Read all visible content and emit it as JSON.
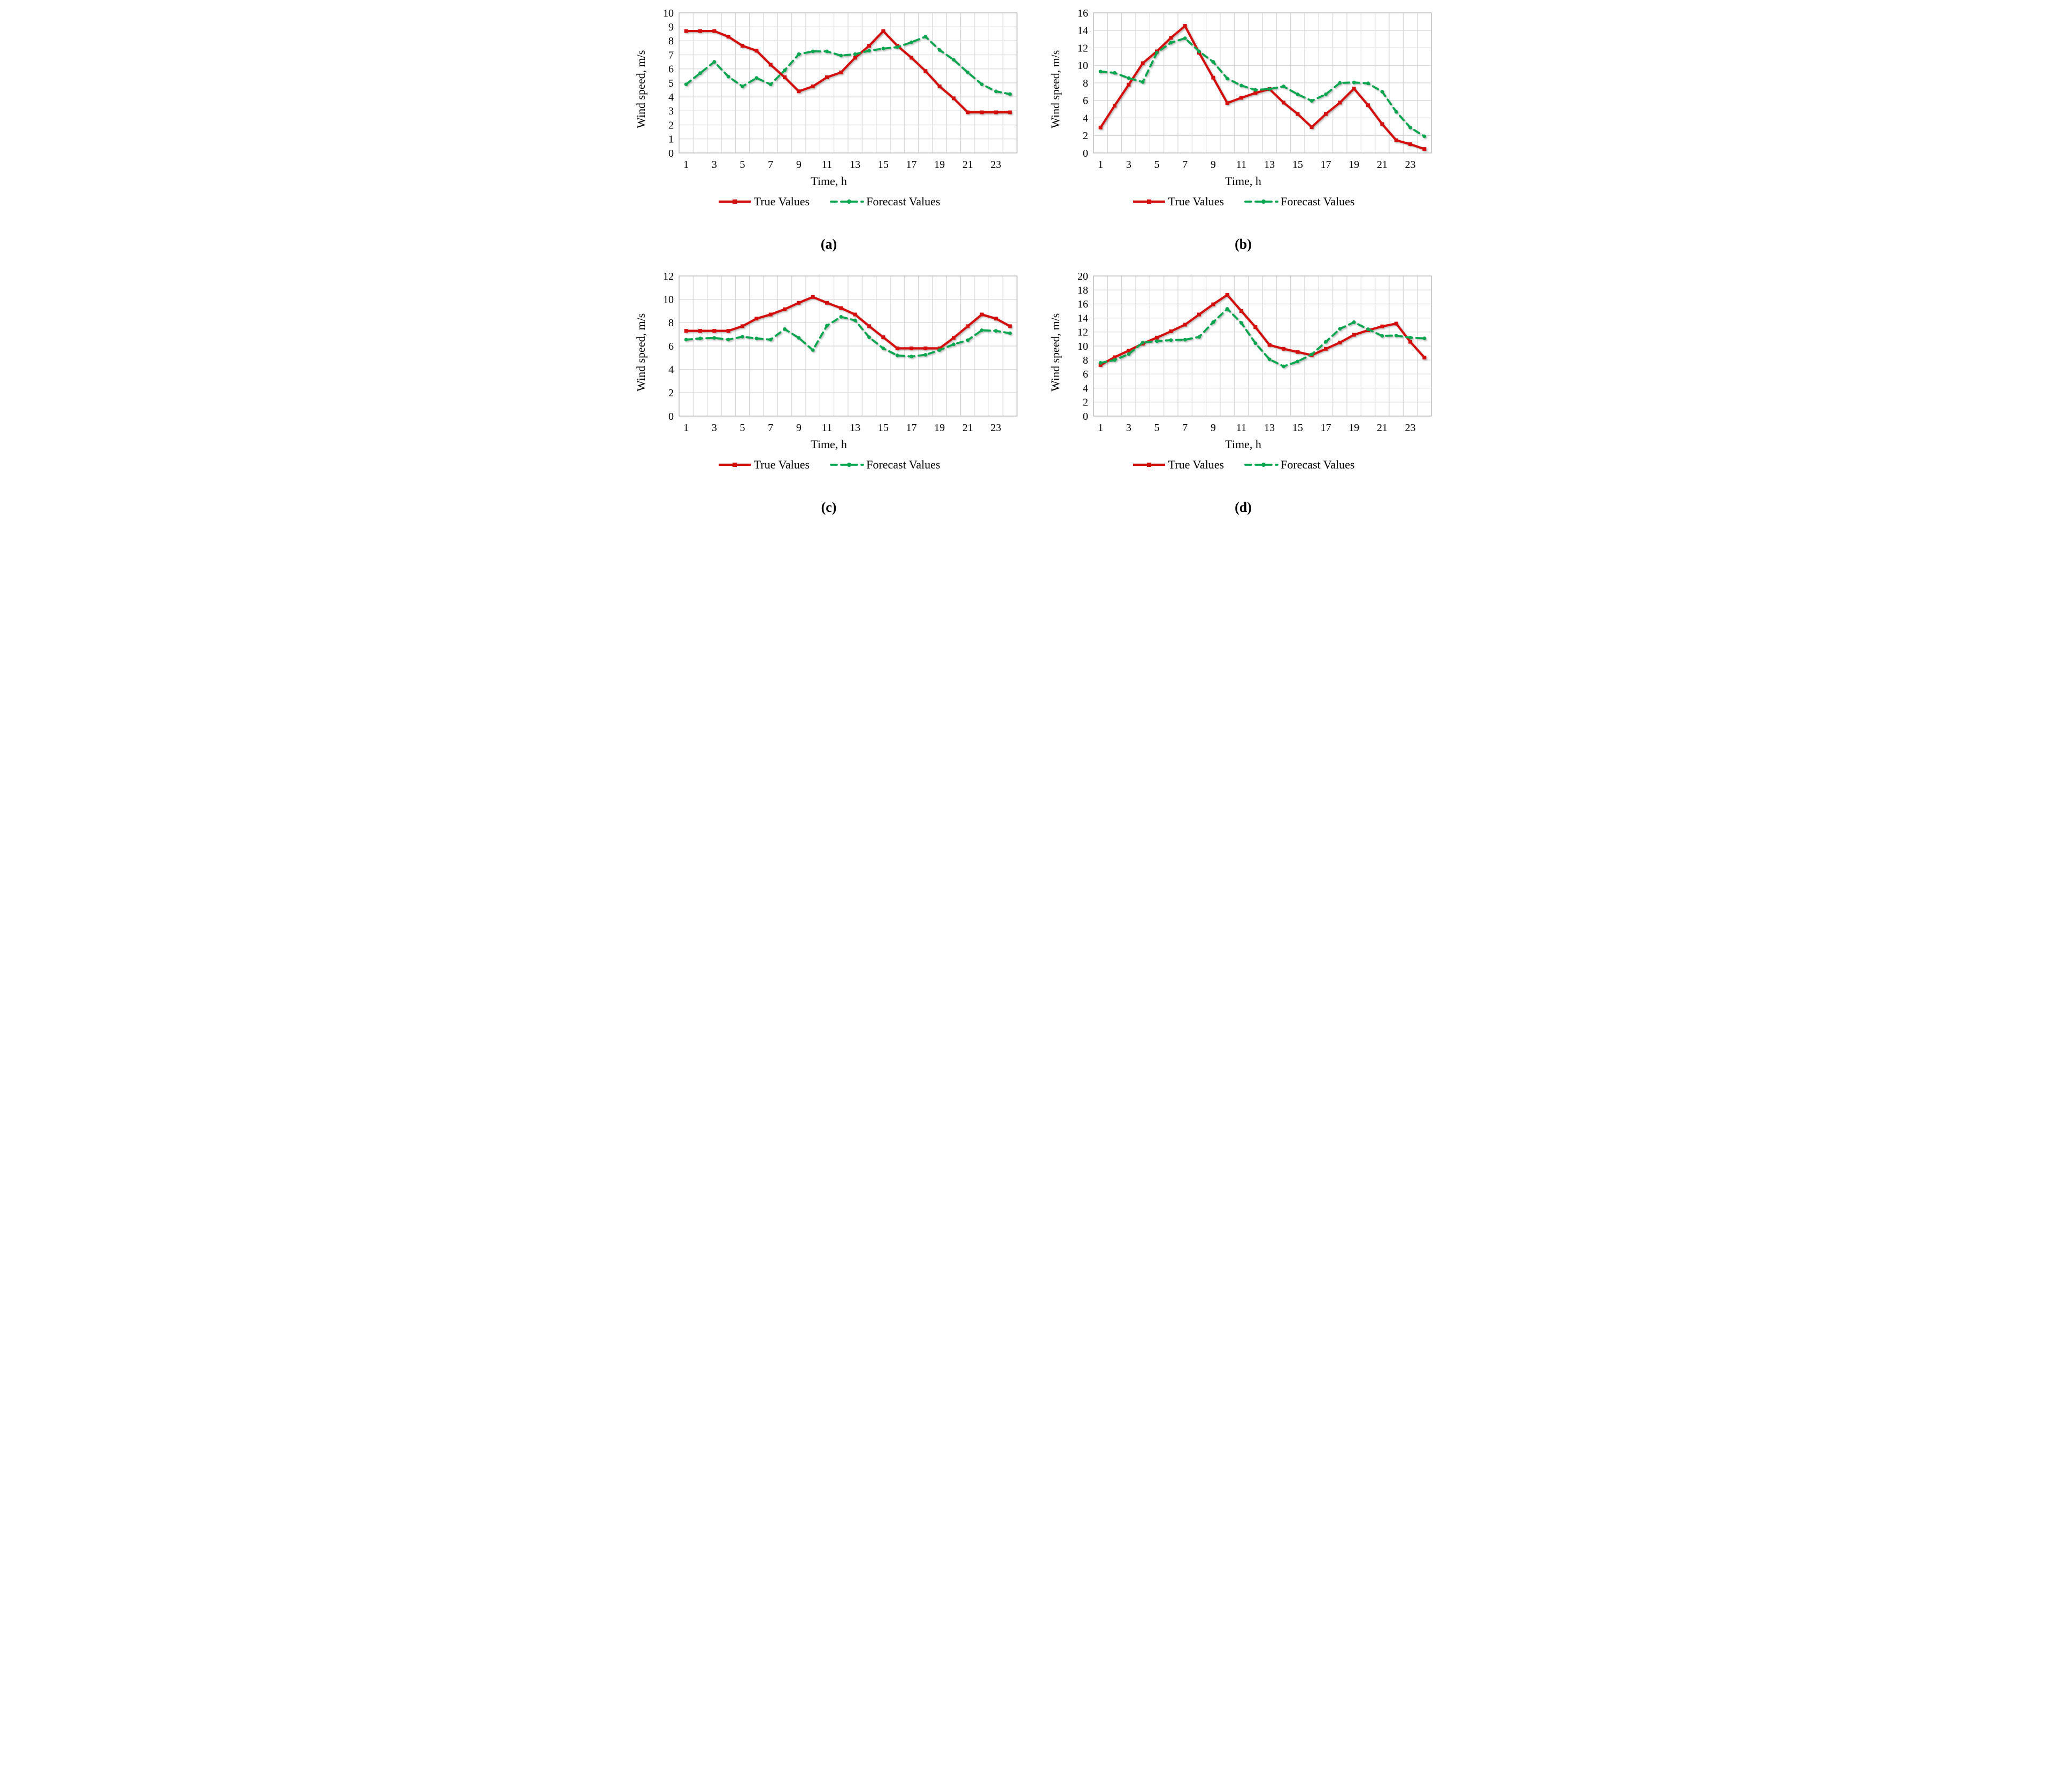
{
  "figure": {
    "legend": {
      "true_label": "True Values",
      "forecast_label": "Forecast Values"
    },
    "colors": {
      "true_series": "#D40D0D",
      "forecast_series": "#0AA64F",
      "gridline": "#D4D4D4",
      "plot_border": "#BDBDBD"
    }
  },
  "chart_data": [
    {
      "id": "a",
      "type": "line",
      "caption": "(a)",
      "xlabel": "Time, h",
      "ylabel": "Wind speed, m/s",
      "x": [
        1,
        2,
        3,
        4,
        5,
        6,
        7,
        8,
        9,
        10,
        11,
        12,
        13,
        14,
        15,
        16,
        17,
        18,
        19,
        20,
        21,
        22,
        23,
        24
      ],
      "xticks": [
        1,
        3,
        5,
        7,
        9,
        11,
        13,
        15,
        17,
        19,
        21,
        23
      ],
      "yticks": [
        0,
        1,
        2,
        3,
        4,
        5,
        6,
        7,
        8,
        9,
        10
      ],
      "ylim": [
        0,
        10
      ],
      "grid": true,
      "legend_position": "bottom",
      "series": [
        {
          "name": "True Values",
          "style": "solid",
          "color": "#D40D0D",
          "values": [
            8.7,
            8.7,
            8.7,
            8.3,
            7.65,
            7.3,
            6.3,
            5.4,
            4.4,
            4.75,
            5.4,
            5.75,
            6.8,
            7.65,
            8.7,
            7.65,
            6.8,
            5.85,
            4.75,
            3.9,
            2.9,
            2.9,
            2.9,
            2.9
          ]
        },
        {
          "name": "Forecast Values",
          "style": "dashed",
          "color": "#0AA64F",
          "values": [
            4.9,
            5.7,
            6.5,
            5.45,
            4.75,
            5.35,
            4.9,
            5.9,
            7.05,
            7.25,
            7.25,
            6.95,
            7.05,
            7.3,
            7.45,
            7.55,
            7.9,
            8.3,
            7.35,
            6.65,
            5.75,
            4.9,
            4.4,
            4.2
          ]
        }
      ]
    },
    {
      "id": "b",
      "type": "line",
      "caption": "(b)",
      "xlabel": "Time, h",
      "ylabel": "Wind speed, m/s",
      "x": [
        1,
        2,
        3,
        4,
        5,
        6,
        7,
        8,
        9,
        10,
        11,
        12,
        13,
        14,
        15,
        16,
        17,
        18,
        19,
        20,
        21,
        22,
        23,
        24
      ],
      "xticks": [
        1,
        3,
        5,
        7,
        9,
        11,
        13,
        15,
        17,
        19,
        21,
        23
      ],
      "yticks": [
        0,
        2,
        4,
        6,
        8,
        10,
        12,
        14,
        16
      ],
      "ylim": [
        0,
        16
      ],
      "grid": true,
      "legend_position": "bottom",
      "series": [
        {
          "name": "True Values",
          "style": "solid",
          "color": "#D40D0D",
          "values": [
            2.9,
            5.4,
            7.8,
            10.25,
            11.6,
            13.15,
            14.5,
            11.45,
            8.6,
            5.7,
            6.3,
            6.85,
            7.3,
            5.75,
            4.45,
            2.95,
            4.45,
            5.75,
            7.35,
            5.45,
            3.3,
            1.45,
            1.0,
            0.45
          ]
        },
        {
          "name": "Forecast Values",
          "style": "dashed",
          "color": "#0AA64F",
          "values": [
            9.3,
            9.15,
            8.55,
            8.1,
            11.45,
            12.6,
            13.1,
            11.6,
            10.4,
            8.5,
            7.7,
            7.2,
            7.3,
            7.6,
            6.7,
            5.95,
            6.7,
            8.0,
            8.05,
            7.95,
            7.0,
            4.7,
            2.9,
            1.9
          ]
        }
      ]
    },
    {
      "id": "c",
      "type": "line",
      "caption": "(c)",
      "xlabel": "Time, h",
      "ylabel": "Wind speed, m/s",
      "x": [
        1,
        2,
        3,
        4,
        5,
        6,
        7,
        8,
        9,
        10,
        11,
        12,
        13,
        14,
        15,
        16,
        17,
        18,
        19,
        20,
        21,
        22,
        23,
        24
      ],
      "xticks": [
        1,
        3,
        5,
        7,
        9,
        11,
        13,
        15,
        17,
        19,
        21,
        23
      ],
      "yticks": [
        0,
        2,
        4,
        6,
        8,
        10,
        12
      ],
      "ylim": [
        0,
        12
      ],
      "grid": true,
      "legend_position": "bottom",
      "series": [
        {
          "name": "True Values",
          "style": "solid",
          "color": "#D40D0D",
          "values": [
            7.3,
            7.3,
            7.3,
            7.3,
            7.7,
            8.35,
            8.7,
            9.15,
            9.7,
            10.2,
            9.7,
            9.25,
            8.7,
            7.7,
            6.75,
            5.8,
            5.8,
            5.8,
            5.8,
            6.7,
            7.7,
            8.7,
            8.35,
            7.7
          ]
        },
        {
          "name": "Forecast Values",
          "style": "dashed",
          "color": "#0AA64F",
          "values": [
            6.55,
            6.65,
            6.7,
            6.55,
            6.8,
            6.65,
            6.55,
            7.45,
            6.7,
            5.65,
            7.75,
            8.5,
            8.2,
            6.75,
            5.8,
            5.2,
            5.1,
            5.25,
            5.65,
            6.15,
            6.5,
            7.35,
            7.3,
            7.1
          ]
        }
      ]
    },
    {
      "id": "d",
      "type": "line",
      "caption": "(d)",
      "xlabel": "Time, h",
      "ylabel": "Wind speed, m/s",
      "x": [
        1,
        2,
        3,
        4,
        5,
        6,
        7,
        8,
        9,
        10,
        11,
        12,
        13,
        14,
        15,
        16,
        17,
        18,
        19,
        20,
        21,
        22,
        23,
        24
      ],
      "xticks": [
        1,
        3,
        5,
        7,
        9,
        11,
        13,
        15,
        17,
        19,
        21,
        23
      ],
      "yticks": [
        0,
        2,
        4,
        6,
        8,
        10,
        12,
        14,
        16,
        18,
        20
      ],
      "ylim": [
        0,
        20
      ],
      "grid": true,
      "legend_position": "bottom",
      "series": [
        {
          "name": "True Values",
          "style": "solid",
          "color": "#D40D0D",
          "values": [
            7.3,
            8.4,
            9.35,
            10.35,
            11.2,
            12.1,
            13.05,
            14.5,
            15.95,
            17.3,
            15.0,
            12.7,
            10.15,
            9.6,
            9.15,
            8.7,
            9.6,
            10.5,
            11.6,
            12.25,
            12.8,
            13.2,
            10.6,
            8.35
          ]
        },
        {
          "name": "Forecast Values",
          "style": "dashed",
          "color": "#0AA64F",
          "values": [
            7.6,
            8.0,
            8.85,
            10.5,
            10.7,
            10.85,
            10.9,
            11.3,
            13.4,
            15.3,
            13.3,
            10.4,
            8.1,
            7.1,
            7.8,
            8.8,
            10.6,
            12.45,
            13.4,
            12.4,
            11.45,
            11.5,
            11.2,
            11.1
          ]
        }
      ]
    }
  ]
}
